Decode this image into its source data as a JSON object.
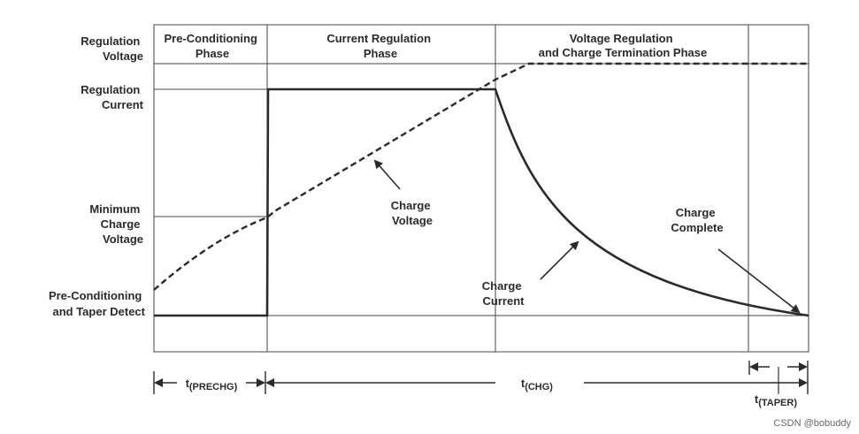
{
  "y_labels": {
    "regulation_voltage": [
      "Regulation",
      "Voltage"
    ],
    "regulation_current": [
      "Regulation",
      "Current"
    ],
    "minimum_charge_voltage": [
      "Minimum",
      "Charge",
      "Voltage"
    ],
    "precond_taper": [
      "Pre-Conditioning",
      "and Taper Detect"
    ]
  },
  "phases": {
    "pre_conditioning": [
      "Pre-Conditioning",
      "Phase"
    ],
    "current_regulation": [
      "Current Regulation",
      "Phase"
    ],
    "voltage_regulation": [
      "Voltage Regulation",
      "and Charge Termination Phase"
    ]
  },
  "annotations": {
    "charge_voltage": [
      "Charge",
      "Voltage"
    ],
    "charge_current": [
      "Charge",
      "Current"
    ],
    "charge_complete": [
      "Charge",
      "Complete"
    ]
  },
  "timing": {
    "t_prechg": {
      "base": "t",
      "sub": "(PRECHG)"
    },
    "t_chg": {
      "base": "t",
      "sub": "(CHG)"
    },
    "t_taper": {
      "base": "t",
      "sub": "(TAPER)"
    }
  },
  "watermark": "CSDN @bobuddy",
  "colors": {
    "line": "#2a2a2a",
    "text": "#2b2b2b"
  }
}
